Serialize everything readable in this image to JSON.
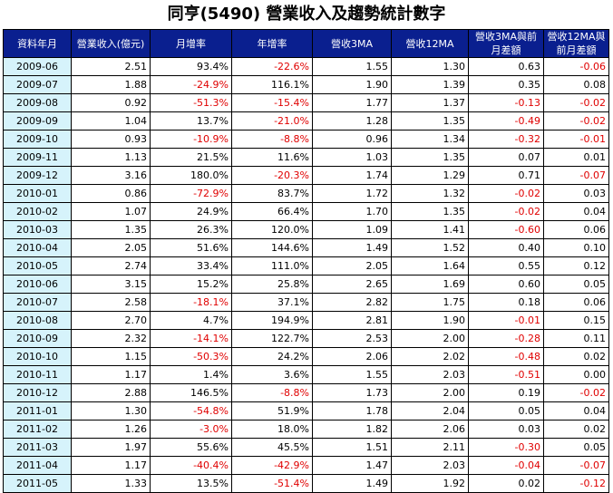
{
  "title": "同亨(5490) 營業收入及趨勢統計數字",
  "headers": [
    "資料年月",
    "營業收入(億元)",
    "月增率",
    "年增率",
    "營收3MA",
    "營收12MA",
    "營收3MA與前月差額",
    "營收12MA與前月差額"
  ],
  "rows": [
    [
      "2009-06",
      "2.51",
      "93.4%",
      "-22.6%",
      "1.55",
      "1.30",
      "0.63",
      "-0.06"
    ],
    [
      "2009-07",
      "1.88",
      "-24.9%",
      "116.1%",
      "1.90",
      "1.39",
      "0.35",
      "0.08"
    ],
    [
      "2009-08",
      "0.92",
      "-51.3%",
      "-15.4%",
      "1.77",
      "1.37",
      "-0.13",
      "-0.02"
    ],
    [
      "2009-09",
      "1.04",
      "13.7%",
      "-21.0%",
      "1.28",
      "1.35",
      "-0.49",
      "-0.02"
    ],
    [
      "2009-10",
      "0.93",
      "-10.9%",
      "-8.8%",
      "0.96",
      "1.34",
      "-0.32",
      "-0.01"
    ],
    [
      "2009-11",
      "1.13",
      "21.5%",
      "11.6%",
      "1.03",
      "1.35",
      "0.07",
      "0.01"
    ],
    [
      "2009-12",
      "3.16",
      "180.0%",
      "-20.3%",
      "1.74",
      "1.29",
      "0.71",
      "-0.07"
    ],
    [
      "2010-01",
      "0.86",
      "-72.9%",
      "83.7%",
      "1.72",
      "1.32",
      "-0.02",
      "0.03"
    ],
    [
      "2010-02",
      "1.07",
      "24.9%",
      "66.4%",
      "1.70",
      "1.35",
      "-0.02",
      "0.04"
    ],
    [
      "2010-03",
      "1.35",
      "26.3%",
      "120.0%",
      "1.09",
      "1.41",
      "-0.60",
      "0.06"
    ],
    [
      "2010-04",
      "2.05",
      "51.6%",
      "144.6%",
      "1.49",
      "1.52",
      "0.40",
      "0.10"
    ],
    [
      "2010-05",
      "2.74",
      "33.4%",
      "111.0%",
      "2.05",
      "1.64",
      "0.55",
      "0.12"
    ],
    [
      "2010-06",
      "3.15",
      "15.2%",
      "25.8%",
      "2.65",
      "1.69",
      "0.60",
      "0.05"
    ],
    [
      "2010-07",
      "2.58",
      "-18.1%",
      "37.1%",
      "2.82",
      "1.75",
      "0.18",
      "0.06"
    ],
    [
      "2010-08",
      "2.70",
      "4.7%",
      "194.9%",
      "2.81",
      "1.90",
      "-0.01",
      "0.15"
    ],
    [
      "2010-09",
      "2.32",
      "-14.1%",
      "122.7%",
      "2.53",
      "2.00",
      "-0.28",
      "0.11"
    ],
    [
      "2010-10",
      "1.15",
      "-50.3%",
      "24.2%",
      "2.06",
      "2.02",
      "-0.48",
      "0.02"
    ],
    [
      "2010-11",
      "1.17",
      "1.4%",
      "3.6%",
      "1.55",
      "2.03",
      "-0.51",
      "0.00"
    ],
    [
      "2010-12",
      "2.88",
      "146.5%",
      "-8.8%",
      "1.73",
      "2.00",
      "0.19",
      "-0.02"
    ],
    [
      "2011-01",
      "1.30",
      "-54.8%",
      "51.9%",
      "1.78",
      "2.04",
      "0.05",
      "0.04"
    ],
    [
      "2011-02",
      "1.26",
      "-3.0%",
      "18.0%",
      "1.82",
      "2.06",
      "0.03",
      "0.02"
    ],
    [
      "2011-03",
      "1.97",
      "55.6%",
      "45.5%",
      "1.51",
      "2.11",
      "-0.30",
      "0.05"
    ],
    [
      "2011-04",
      "1.17",
      "-40.4%",
      "-42.9%",
      "1.47",
      "2.03",
      "-0.04",
      "-0.07"
    ],
    [
      "2011-05",
      "1.33",
      "13.5%",
      "-51.4%",
      "1.49",
      "1.92",
      "0.02",
      "-0.12"
    ]
  ],
  "colors": {
    "header_bg": "#0a1f8f",
    "header_text": "#ffffff",
    "month_cell_bg": "#d6f3fb",
    "negative_text": "#e00000"
  }
}
